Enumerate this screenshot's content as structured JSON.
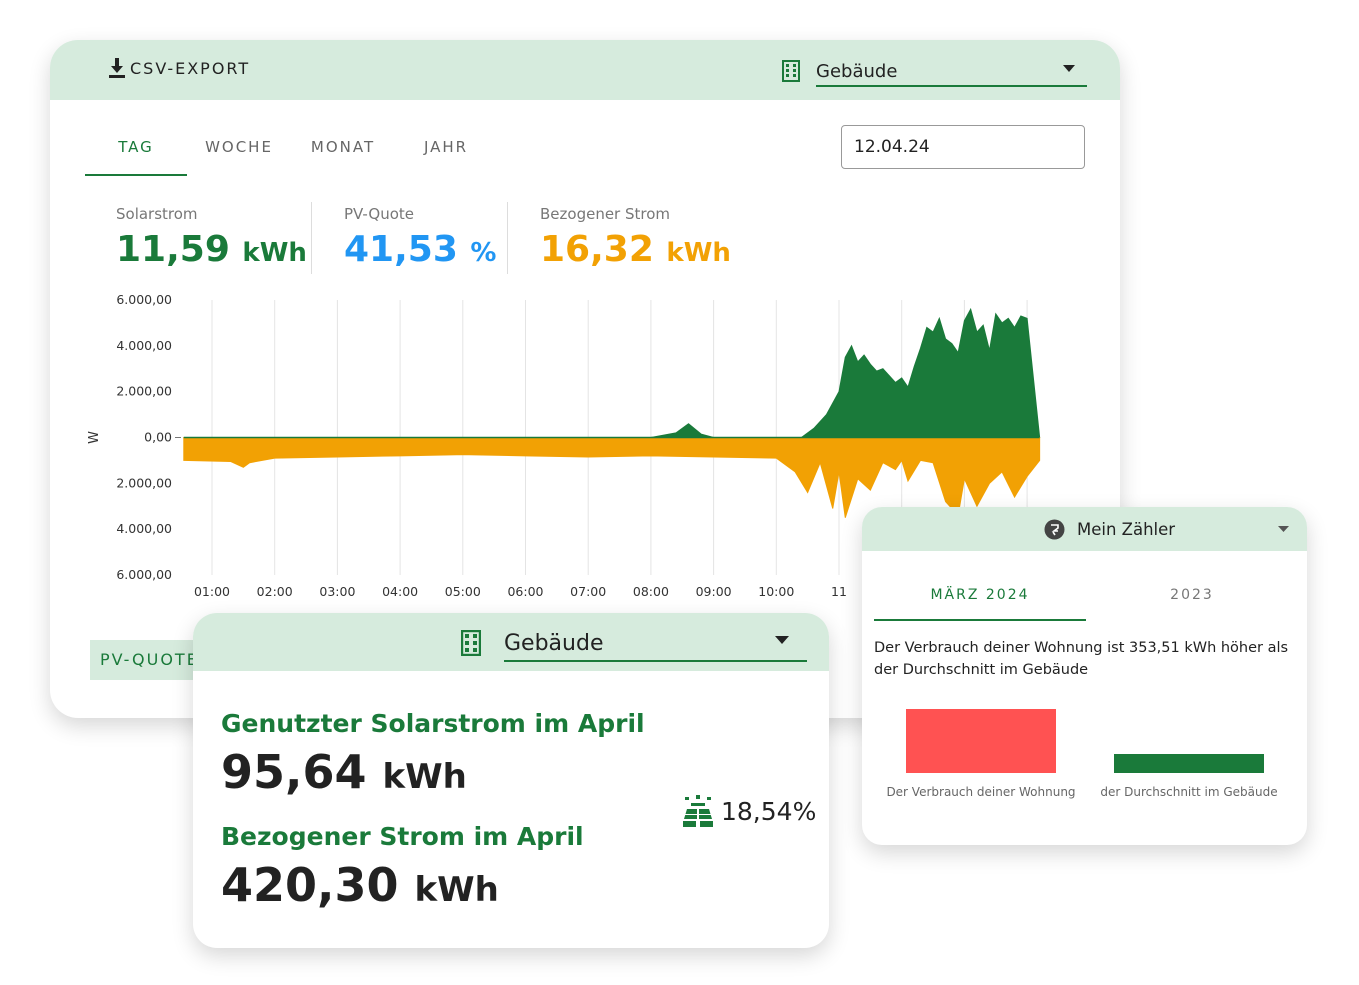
{
  "colors": {
    "green": "#1a7a3a",
    "blue": "#2196f3",
    "orange": "#f2a104",
    "red": "#ff5252",
    "header_bg": "#d6ebdd"
  },
  "main": {
    "csv_label": "CSV-EXPORT",
    "building_select": "Gebäude",
    "tabs": [
      "TAG",
      "WOCHE",
      "MONAT",
      "JAHR"
    ],
    "active_tab": "TAG",
    "date": "12.04.24",
    "kpis": [
      {
        "title": "Solarstrom",
        "value": "11,59",
        "unit": "kWh"
      },
      {
        "title": "PV-Quote",
        "value": "41,53",
        "unit": "%"
      },
      {
        "title": "Bezogener Strom",
        "value": "16,32",
        "unit": "kWh"
      }
    ],
    "pv_quote_button": "PV-QUOTE"
  },
  "chart_data": {
    "type": "area",
    "ylabel": "W",
    "y_ticks": [
      "6.000,00",
      "4.000,00",
      "2.000,00",
      "0,00",
      "2.000,00",
      "4.000,00",
      "6.000,00"
    ],
    "ylim": [
      -6000,
      6000
    ],
    "x_ticks": [
      "01:00",
      "02:00",
      "03:00",
      "04:00",
      "05:00",
      "06:00",
      "07:00",
      "08:00",
      "09:00",
      "10:00",
      "11"
    ],
    "grid": "vertical",
    "series": [
      {
        "color": "#1a7a3a",
        "x": [
          0.55,
          8,
          8.4,
          8.6,
          8.8,
          9,
          10.4,
          10.6,
          10.8,
          11,
          11.1,
          11.2,
          11.3,
          11.4,
          11.5,
          11.6,
          11.7,
          11.8,
          11.9,
          12,
          12.1,
          12.2,
          12.3,
          12.4,
          12.5,
          12.6,
          12.7,
          12.8,
          12.9,
          13,
          13.1,
          13.2,
          13.3,
          13.4,
          13.5,
          13.6,
          13.7,
          13.8,
          13.9,
          14.0,
          14.2
        ],
        "y": [
          0,
          0,
          200,
          600,
          150,
          0,
          0,
          400,
          1000,
          2000,
          3500,
          4000,
          3300,
          3600,
          3200,
          2900,
          3000,
          2700,
          2400,
          2600,
          2200,
          3100,
          3900,
          4800,
          4600,
          5200,
          4300,
          4100,
          3700,
          5100,
          5600,
          4600,
          4900,
          3800,
          5400,
          5000,
          5200,
          4800,
          5300,
          5200,
          0
        ]
      },
      {
        "color": "#f2a104",
        "x": [
          0.55,
          1.3,
          1.5,
          1.6,
          2.0,
          3,
          4,
          5,
          6,
          7,
          8,
          9,
          10,
          10.3,
          10.5,
          10.7,
          10.9,
          11.0,
          11.1,
          11.3,
          11.5,
          11.7,
          11.9,
          12.0,
          12.1,
          12.3,
          12.5,
          12.7,
          12.9,
          13.0,
          13.2,
          13.4,
          13.6,
          13.8,
          14.0,
          14.2
        ],
        "y": [
          -1000,
          -1050,
          -1300,
          -1100,
          -900,
          -850,
          -800,
          -750,
          -800,
          -850,
          -800,
          -850,
          -900,
          -1500,
          -2400,
          -1100,
          -3100,
          -1500,
          -3500,
          -1800,
          -2300,
          -1100,
          -1400,
          -1000,
          -1900,
          -1000,
          -1100,
          -2800,
          -3400,
          -1800,
          -3000,
          -2000,
          -1500,
          -2600,
          -1700,
          -1000
        ]
      }
    ]
  },
  "building_card": {
    "select": "Gebäude",
    "solar_title": "Genutzter Solarstrom im April",
    "solar_value": "95,64",
    "solar_unit": "kWh",
    "grid_title": "Bezogener Strom im April",
    "grid_value": "420,30",
    "grid_unit": "kWh",
    "pv_percent": "18,54%",
    "pv_icon": "solar-panel-icon"
  },
  "meter_card": {
    "select": "Mein Zähler",
    "select_icon": "meter-icon",
    "tabs": [
      "MÄRZ 2024",
      "2023"
    ],
    "active_tab": "MÄRZ 2024",
    "text": "Der Verbrauch deiner Wohnung ist 353,51 kWh höher als der Durchschnitt im Gebäude",
    "bars": [
      {
        "label": "Der Verbrauch deiner Wohnung",
        "value": 1.0,
        "color": "#ff5252"
      },
      {
        "label": "der Durchschnitt im Gebäude",
        "value": 0.3,
        "color": "#1a7a3a"
      }
    ]
  }
}
